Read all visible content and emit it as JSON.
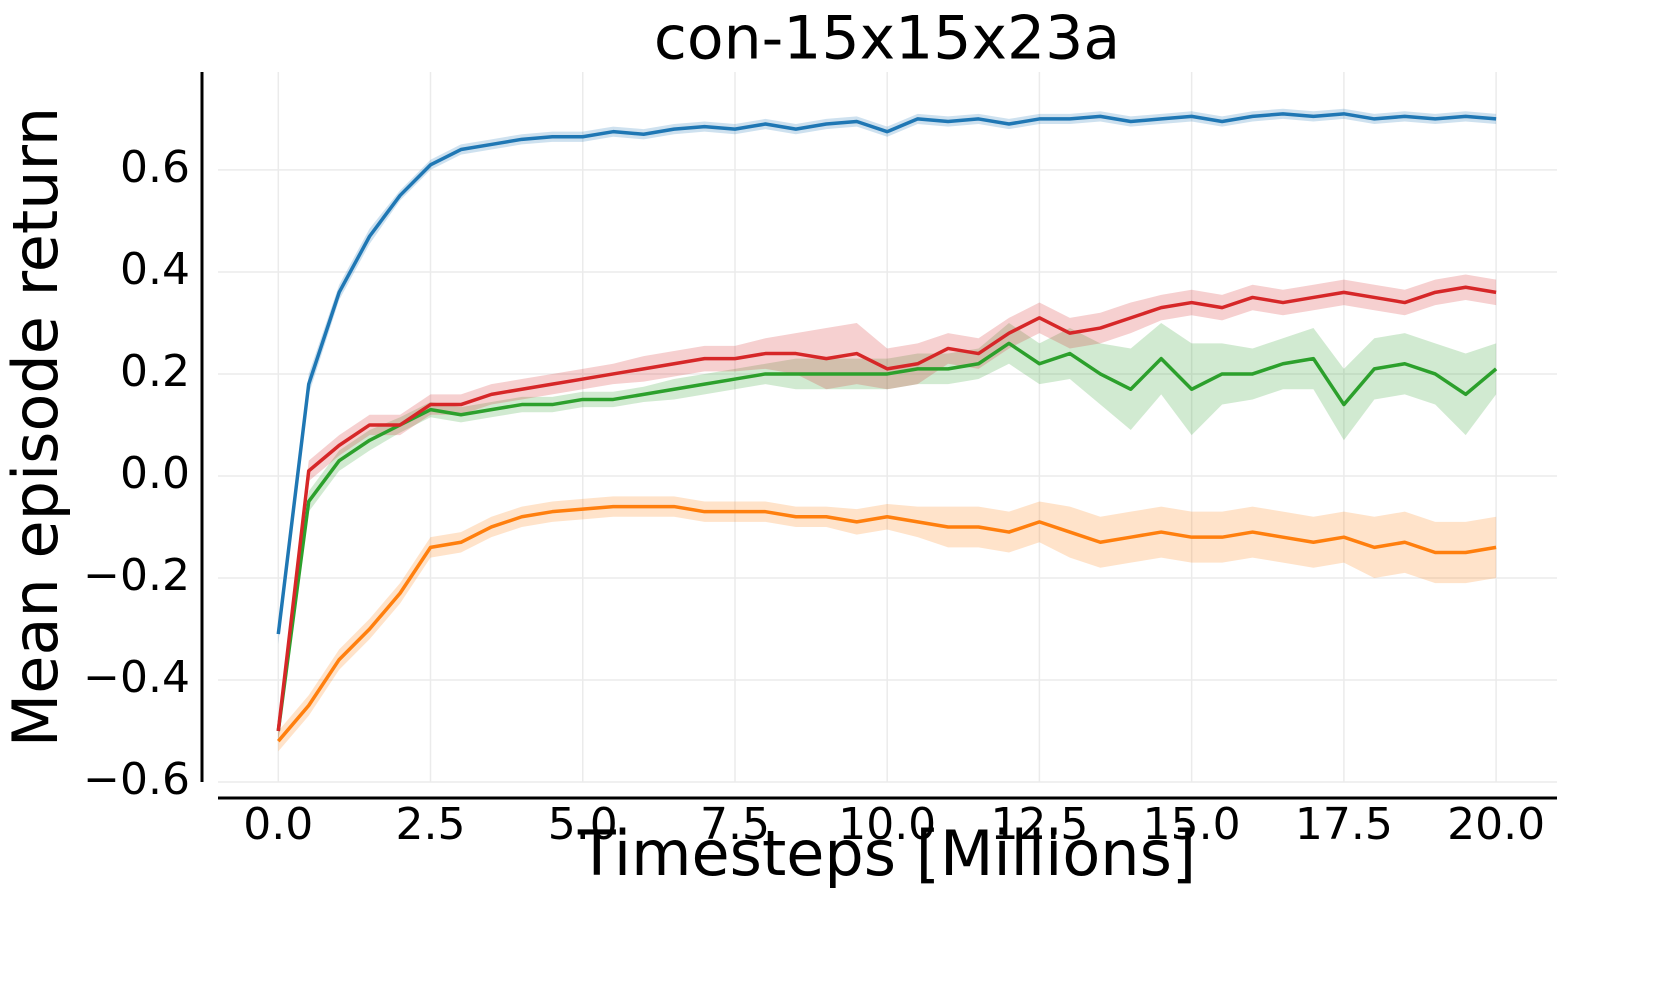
{
  "chart_data": {
    "type": "line",
    "title": "con-15x15x23a",
    "xlabel": "Timesteps [Millions]",
    "ylabel": "Mean episode return",
    "x": [
      0,
      0.5,
      1,
      1.5,
      2,
      2.5,
      3,
      3.5,
      4,
      4.5,
      5,
      5.5,
      6,
      6.5,
      7,
      7.5,
      8,
      8.5,
      9,
      9.5,
      10,
      10.5,
      11,
      11.5,
      12,
      12.5,
      13,
      13.5,
      14,
      14.5,
      15,
      15.5,
      16,
      16.5,
      17,
      17.5,
      18,
      18.5,
      19,
      19.5,
      20
    ],
    "series": [
      {
        "color": "#1f77b4",
        "values": [
          -0.31,
          0.18,
          0.36,
          0.47,
          0.55,
          0.61,
          0.64,
          0.65,
          0.66,
          0.665,
          0.665,
          0.675,
          0.67,
          0.68,
          0.685,
          0.68,
          0.69,
          0.68,
          0.69,
          0.695,
          0.675,
          0.7,
          0.695,
          0.7,
          0.69,
          0.7,
          0.7,
          0.705,
          0.695,
          0.7,
          0.705,
          0.695,
          0.705,
          0.71,
          0.705,
          0.71,
          0.7,
          0.705,
          0.7,
          0.705,
          0.7
        ],
        "error": [
          0.02,
          0.02,
          0.015,
          0.015,
          0.01,
          0.01,
          0.01,
          0.01,
          0.01,
          0.01,
          0.01,
          0.01,
          0.01,
          0.01,
          0.01,
          0.01,
          0.01,
          0.01,
          0.01,
          0.01,
          0.01,
          0.01,
          0.01,
          0.01,
          0.01,
          0.01,
          0.01,
          0.01,
          0.01,
          0.01,
          0.01,
          0.01,
          0.01,
          0.01,
          0.01,
          0.01,
          0.01,
          0.01,
          0.01,
          0.01,
          0.01
        ]
      },
      {
        "color": "#ff7f0e",
        "values": [
          -0.52,
          -0.45,
          -0.36,
          -0.3,
          -0.23,
          -0.14,
          -0.13,
          -0.1,
          -0.08,
          -0.07,
          -0.065,
          -0.06,
          -0.06,
          -0.06,
          -0.07,
          -0.07,
          -0.07,
          -0.08,
          -0.08,
          -0.09,
          -0.08,
          -0.09,
          -0.1,
          -0.1,
          -0.11,
          -0.09,
          -0.11,
          -0.13,
          -0.12,
          -0.11,
          -0.12,
          -0.12,
          -0.11,
          -0.12,
          -0.13,
          -0.12,
          -0.14,
          -0.13,
          -0.15,
          -0.15,
          -0.14
        ],
        "error": [
          0.02,
          0.02,
          0.02,
          0.02,
          0.02,
          0.02,
          0.02,
          0.02,
          0.02,
          0.02,
          0.02,
          0.02,
          0.02,
          0.02,
          0.02,
          0.02,
          0.02,
          0.02,
          0.02,
          0.025,
          0.025,
          0.03,
          0.04,
          0.04,
          0.04,
          0.04,
          0.05,
          0.05,
          0.05,
          0.05,
          0.05,
          0.05,
          0.05,
          0.05,
          0.05,
          0.05,
          0.06,
          0.06,
          0.06,
          0.06,
          0.06
        ]
      },
      {
        "color": "#2ca02c",
        "values": [
          -0.5,
          -0.05,
          0.03,
          0.07,
          0.1,
          0.13,
          0.12,
          0.13,
          0.14,
          0.14,
          0.15,
          0.15,
          0.16,
          0.17,
          0.18,
          0.19,
          0.2,
          0.2,
          0.2,
          0.2,
          0.2,
          0.21,
          0.21,
          0.22,
          0.26,
          0.22,
          0.24,
          0.2,
          0.17,
          0.23,
          0.17,
          0.2,
          0.2,
          0.22,
          0.23,
          0.14,
          0.21,
          0.22,
          0.2,
          0.16,
          0.21
        ],
        "error": [
          0.02,
          0.02,
          0.02,
          0.02,
          0.015,
          0.015,
          0.015,
          0.015,
          0.015,
          0.015,
          0.015,
          0.015,
          0.015,
          0.02,
          0.02,
          0.02,
          0.02,
          0.03,
          0.03,
          0.03,
          0.03,
          0.03,
          0.03,
          0.03,
          0.04,
          0.04,
          0.05,
          0.06,
          0.08,
          0.07,
          0.09,
          0.06,
          0.05,
          0.05,
          0.06,
          0.07,
          0.06,
          0.06,
          0.06,
          0.08,
          0.05
        ]
      },
      {
        "color": "#d62728",
        "values": [
          -0.5,
          0.01,
          0.06,
          0.1,
          0.1,
          0.14,
          0.14,
          0.16,
          0.17,
          0.18,
          0.19,
          0.2,
          0.21,
          0.22,
          0.23,
          0.23,
          0.24,
          0.24,
          0.23,
          0.24,
          0.21,
          0.22,
          0.25,
          0.24,
          0.28,
          0.31,
          0.28,
          0.29,
          0.31,
          0.33,
          0.34,
          0.33,
          0.35,
          0.34,
          0.35,
          0.36,
          0.35,
          0.34,
          0.36,
          0.37,
          0.36
        ],
        "error": [
          0.02,
          0.02,
          0.02,
          0.02,
          0.02,
          0.02,
          0.02,
          0.02,
          0.02,
          0.02,
          0.02,
          0.02,
          0.025,
          0.025,
          0.025,
          0.025,
          0.03,
          0.04,
          0.06,
          0.06,
          0.04,
          0.04,
          0.03,
          0.03,
          0.03,
          0.03,
          0.03,
          0.03,
          0.03,
          0.025,
          0.025,
          0.025,
          0.025,
          0.025,
          0.025,
          0.025,
          0.025,
          0.025,
          0.025,
          0.025,
          0.025
        ]
      }
    ],
    "xlim": [
      -0.99,
      21.0
    ],
    "ylim": [
      -0.6,
      0.792
    ],
    "xticks": [
      {
        "value": 0,
        "label": "0.0"
      },
      {
        "value": 2.5,
        "label": "2.5"
      },
      {
        "value": 5,
        "label": "5.0"
      },
      {
        "value": 7.5,
        "label": "7.5"
      },
      {
        "value": 10,
        "label": "10.0"
      },
      {
        "value": 12.5,
        "label": "12.5"
      },
      {
        "value": 15,
        "label": "15.0"
      },
      {
        "value": 17.5,
        "label": "17.5"
      },
      {
        "value": 20,
        "label": "20.0"
      }
    ],
    "yticks": [
      {
        "value": -0.6,
        "label": "−0.6"
      },
      {
        "value": -0.4,
        "label": "−0.4"
      },
      {
        "value": -0.2,
        "label": "−0.2"
      },
      {
        "value": 0,
        "label": "0.0"
      },
      {
        "value": 0.2,
        "label": "0.2"
      },
      {
        "value": 0.4,
        "label": "0.4"
      },
      {
        "value": 0.6,
        "label": "0.6"
      }
    ],
    "grid": true
  }
}
